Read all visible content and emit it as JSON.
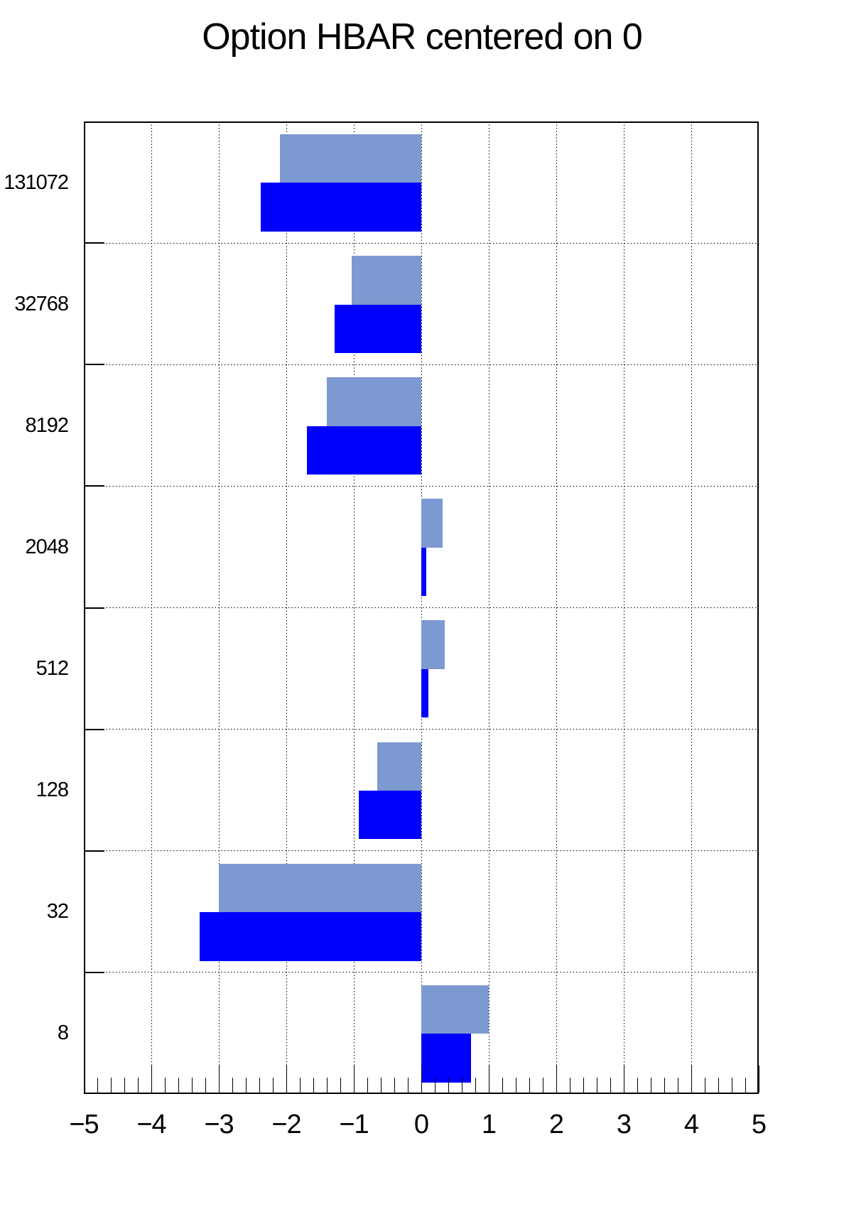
{
  "page": {
    "background_color": "#ffffff",
    "text_color": "#000000"
  },
  "chart_data": {
    "type": "bar",
    "orientation": "horizontal",
    "title": "Option HBAR centered on 0",
    "note": "two horizontal bar series per category, bars grow left/right from x=0",
    "categories_top_to_bottom": [
      "131072",
      "32768",
      "8192",
      "2048",
      "512",
      "128",
      "32",
      "8"
    ],
    "series": [
      {
        "name": "light-blue-bars",
        "color": "#7D99D1",
        "values_top_to_bottom": [
          -2.1,
          -1.03,
          -1.4,
          0.32,
          0.35,
          -0.65,
          -3.0,
          1.0
        ]
      },
      {
        "name": "blue-bars",
        "color": "#0000FF",
        "values_top_to_bottom": [
          -2.38,
          -1.28,
          -1.69,
          0.07,
          0.1,
          -0.93,
          -3.28,
          0.74
        ]
      }
    ],
    "x_axis": {
      "min": -5,
      "max": 5,
      "major_tick_step": 1,
      "minor_tick_step": 0.2,
      "tick_labels": [
        "−5",
        "−4",
        "−3",
        "−2",
        "−1",
        "0",
        "1",
        "2",
        "3",
        "4",
        "5"
      ]
    },
    "y_axis": {
      "tick_labels_top_to_bottom": [
        "131072",
        "32768",
        "8192",
        "2048",
        "512",
        "128",
        "32",
        "8"
      ]
    },
    "grid": {
      "style": "dotted",
      "vertical_lines_at": [
        -4,
        -3,
        -2,
        -1,
        0,
        1,
        2,
        3,
        4
      ],
      "horizontal_lines": "at each category boundary"
    },
    "legend": "none",
    "frame_color": "#000000"
  }
}
